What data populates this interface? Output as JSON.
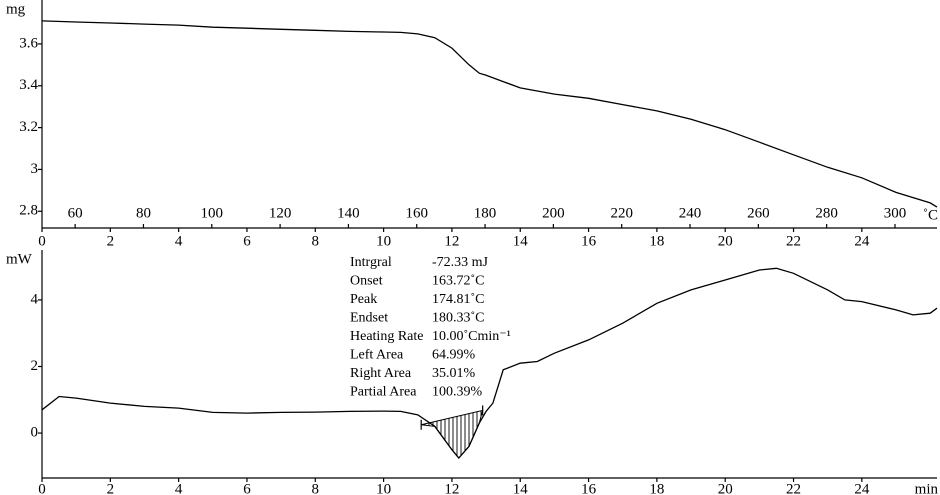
{
  "chart_data": [
    {
      "type": "line",
      "y_label": "mg",
      "x2_label": "˚C",
      "x": [
        0,
        1,
        2,
        3,
        4,
        5,
        6,
        7,
        8,
        9,
        10,
        10.5,
        11,
        11.5,
        12,
        12.5,
        12.8,
        13,
        13.5,
        14,
        15,
        16,
        17,
        18,
        19,
        20,
        21,
        22,
        23,
        24,
        25,
        26,
        26.2
      ],
      "series": [
        {
          "color": "#000000",
          "values": [
            3.71,
            3.705,
            3.7,
            3.695,
            3.69,
            3.68,
            3.675,
            3.67,
            3.665,
            3.66,
            3.657,
            3.655,
            3.648,
            3.63,
            3.58,
            3.5,
            3.46,
            3.45,
            3.42,
            3.39,
            3.36,
            3.34,
            3.31,
            3.28,
            3.24,
            3.19,
            3.13,
            3.07,
            3.01,
            2.96,
            2.89,
            2.84,
            2.82
          ]
        }
      ],
      "xlim": [
        0,
        26.2
      ],
      "xticks": [
        0,
        2,
        4,
        6,
        8,
        10,
        12,
        14,
        16,
        18,
        20,
        22,
        24
      ],
      "ylim": [
        2.72,
        3.81
      ],
      "yticks": [
        2.8,
        3.0,
        3.2,
        3.4,
        3.6
      ],
      "x2lim": [
        50.3,
        312.3
      ],
      "x2ticks": [
        60,
        80,
        100,
        120,
        140,
        160,
        180,
        200,
        220,
        240,
        260,
        280,
        300
      ]
    },
    {
      "type": "line",
      "y_label": "mW",
      "x_label": "min",
      "x": [
        0,
        0.5,
        1,
        2,
        3,
        4,
        5,
        6,
        7,
        8,
        9,
        10,
        10.5,
        11,
        11.5,
        12,
        12.2,
        12.5,
        12.8,
        13,
        13.2,
        13.5,
        14,
        14.5,
        15,
        16,
        17,
        18,
        19,
        20,
        21,
        21.5,
        22,
        23,
        23.5,
        24,
        25,
        25.5,
        26,
        26.2
      ],
      "series": [
        {
          "color": "#000000",
          "values": [
            0.7,
            1.1,
            1.05,
            0.9,
            0.8,
            0.75,
            0.62,
            0.6,
            0.62,
            0.63,
            0.65,
            0.66,
            0.65,
            0.55,
            0.2,
            -0.5,
            -0.75,
            -0.4,
            0.3,
            0.65,
            0.9,
            1.9,
            2.1,
            2.15,
            2.4,
            2.8,
            3.3,
            3.9,
            4.3,
            4.6,
            4.9,
            4.95,
            4.8,
            4.3,
            4.0,
            3.95,
            3.7,
            3.55,
            3.6,
            3.75
          ]
        }
      ],
      "baseline": {
        "x": [
          11.1,
          12.9
        ],
        "y": [
          0.25,
          0.68
        ]
      },
      "xlim": [
        0,
        26.2
      ],
      "xticks": [
        0,
        2,
        4,
        6,
        8,
        10,
        12,
        14,
        16,
        18,
        20,
        22,
        24
      ],
      "ylim": [
        -1.35,
        5.5
      ],
      "yticks": [
        0,
        2,
        4
      ],
      "annotations": [
        {
          "label": "Intrgral",
          "value": "-72.33 mJ"
        },
        {
          "label": "Onset",
          "value": "163.72˚C"
        },
        {
          "label": "Peak",
          "value": "174.81˚C"
        },
        {
          "label": "Endset",
          "value": "180.33˚C"
        },
        {
          "label": "Heating Rate",
          "value": "10.00˚Cmin⁻¹"
        },
        {
          "label": "Left Area",
          "value": "64.99%"
        },
        {
          "label": "Right Area",
          "value": "35.01%"
        },
        {
          "label": "Partial Area",
          "value": "100.39%"
        }
      ]
    }
  ]
}
